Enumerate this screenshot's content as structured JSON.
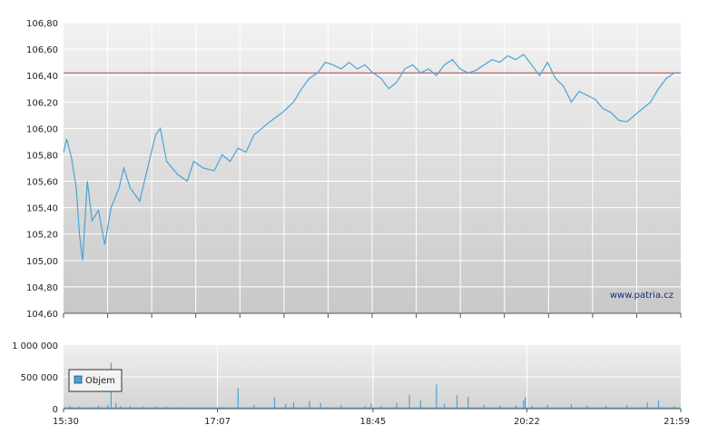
{
  "watermark": "www.patria.cz",
  "colors": {
    "price_line": "#4aa3d6",
    "reference_line": "#c04040",
    "volume_bar": "#4aa3d6",
    "axis": "#555555",
    "grid": "#ffffff"
  },
  "chart_data": [
    {
      "type": "line",
      "x_ticks": [
        "15:30",
        "17:07",
        "18:45",
        "20:22",
        "21:59"
      ],
      "y_ticks": [
        "104,60",
        "104,80",
        "105,00",
        "105,20",
        "105,40",
        "105,60",
        "105,80",
        "106,00",
        "106,20",
        "106,40",
        "106,60",
        "106,80"
      ],
      "ylim": [
        104.6,
        106.8
      ],
      "reference_value": 106.42,
      "grid": true,
      "series": [
        {
          "points": [
            [
              "15:30",
              105.82
            ],
            [
              "15:32",
              105.92
            ],
            [
              "15:35",
              105.78
            ],
            [
              "15:38",
              105.55
            ],
            [
              "15:40",
              105.2
            ],
            [
              "15:42",
              105.0
            ],
            [
              "15:45",
              105.6
            ],
            [
              "15:48",
              105.3
            ],
            [
              "15:52",
              105.38
            ],
            [
              "15:56",
              105.12
            ],
            [
              "16:00",
              105.4
            ],
            [
              "16:05",
              105.55
            ],
            [
              "16:08",
              105.7
            ],
            [
              "16:12",
              105.55
            ],
            [
              "16:18",
              105.45
            ],
            [
              "16:23",
              105.7
            ],
            [
              "16:28",
              105.95
            ],
            [
              "16:31",
              106.0
            ],
            [
              "16:35",
              105.75
            ],
            [
              "16:42",
              105.65
            ],
            [
              "16:48",
              105.6
            ],
            [
              "16:52",
              105.75
            ],
            [
              "16:58",
              105.7
            ],
            [
              "17:05",
              105.68
            ],
            [
              "17:10",
              105.8
            ],
            [
              "17:15",
              105.75
            ],
            [
              "17:20",
              105.85
            ],
            [
              "17:25",
              105.82
            ],
            [
              "17:30",
              105.95
            ],
            [
              "17:35",
              106.0
            ],
            [
              "17:40",
              106.05
            ],
            [
              "17:48",
              106.12
            ],
            [
              "17:55",
              106.2
            ],
            [
              "18:00",
              106.3
            ],
            [
              "18:05",
              106.38
            ],
            [
              "18:10",
              106.42
            ],
            [
              "18:15",
              106.5
            ],
            [
              "18:20",
              106.48
            ],
            [
              "18:25",
              106.45
            ],
            [
              "18:30",
              106.5
            ],
            [
              "18:35",
              106.45
            ],
            [
              "18:40",
              106.48
            ],
            [
              "18:45",
              106.42
            ],
            [
              "18:50",
              106.38
            ],
            [
              "18:55",
              106.3
            ],
            [
              "19:00",
              106.35
            ],
            [
              "19:05",
              106.45
            ],
            [
              "19:10",
              106.48
            ],
            [
              "19:15",
              106.42
            ],
            [
              "19:20",
              106.45
            ],
            [
              "19:25",
              106.4
            ],
            [
              "19:30",
              106.48
            ],
            [
              "19:35",
              106.52
            ],
            [
              "19:40",
              106.45
            ],
            [
              "19:45",
              106.42
            ],
            [
              "19:50",
              106.44
            ],
            [
              "19:55",
              106.48
            ],
            [
              "20:00",
              106.52
            ],
            [
              "20:05",
              106.5
            ],
            [
              "20:10",
              106.55
            ],
            [
              "20:15",
              106.52
            ],
            [
              "20:20",
              106.56
            ],
            [
              "20:25",
              106.48
            ],
            [
              "20:30",
              106.4
            ],
            [
              "20:35",
              106.5
            ],
            [
              "20:40",
              106.38
            ],
            [
              "20:45",
              106.32
            ],
            [
              "20:50",
              106.2
            ],
            [
              "20:55",
              106.28
            ],
            [
              "21:00",
              106.25
            ],
            [
              "21:05",
              106.22
            ],
            [
              "21:10",
              106.15
            ],
            [
              "21:15",
              106.12
            ],
            [
              "21:20",
              106.06
            ],
            [
              "21:25",
              106.05
            ],
            [
              "21:30",
              106.1
            ],
            [
              "21:35",
              106.15
            ],
            [
              "21:40",
              106.2
            ],
            [
              "21:45",
              106.3
            ],
            [
              "21:50",
              106.38
            ],
            [
              "21:55",
              106.42
            ],
            [
              "21:59",
              106.42
            ]
          ]
        }
      ]
    },
    {
      "type": "bar",
      "y_ticks": [
        "0",
        "500 000",
        "1 000 000"
      ],
      "ylim": [
        0,
        1000000
      ],
      "legend": "Objem",
      "grid": true,
      "series": [
        {
          "name": "Objem",
          "bars": [
            [
              "15:34",
              45000
            ],
            [
              "15:40",
              30000
            ],
            [
              "15:46",
              25000
            ],
            [
              "15:52",
              50000
            ],
            [
              "15:58",
              60000
            ],
            [
              "16:00",
              720000
            ],
            [
              "16:03",
              90000
            ],
            [
              "16:06",
              40000
            ],
            [
              "16:12",
              45000
            ],
            [
              "16:20",
              30000
            ],
            [
              "16:28",
              35000
            ],
            [
              "16:35",
              30000
            ],
            [
              "16:45",
              25000
            ],
            [
              "16:55",
              20000
            ],
            [
              "17:10",
              25000
            ],
            [
              "17:20",
              320000
            ],
            [
              "17:30",
              60000
            ],
            [
              "17:43",
              180000
            ],
            [
              "17:50",
              80000
            ],
            [
              "17:55",
              100000
            ],
            [
              "18:05",
              120000
            ],
            [
              "18:12",
              90000
            ],
            [
              "18:25",
              60000
            ],
            [
              "18:40",
              40000
            ],
            [
              "18:44",
              80000
            ],
            [
              "18:50",
              45000
            ],
            [
              "19:00",
              90000
            ],
            [
              "19:08",
              210000
            ],
            [
              "19:15",
              130000
            ],
            [
              "19:25",
              380000
            ],
            [
              "19:30",
              80000
            ],
            [
              "19:38",
              210000
            ],
            [
              "19:45",
              190000
            ],
            [
              "19:55",
              60000
            ],
            [
              "20:05",
              50000
            ],
            [
              "20:15",
              55000
            ],
            [
              "20:20",
              130000
            ],
            [
              "20:21",
              180000
            ],
            [
              "20:25",
              45000
            ],
            [
              "20:35",
              60000
            ],
            [
              "20:50",
              70000
            ],
            [
              "21:00",
              50000
            ],
            [
              "21:12",
              45000
            ],
            [
              "21:25",
              60000
            ],
            [
              "21:38",
              100000
            ],
            [
              "21:45",
              130000
            ],
            [
              "21:55",
              35000
            ]
          ]
        }
      ]
    }
  ]
}
